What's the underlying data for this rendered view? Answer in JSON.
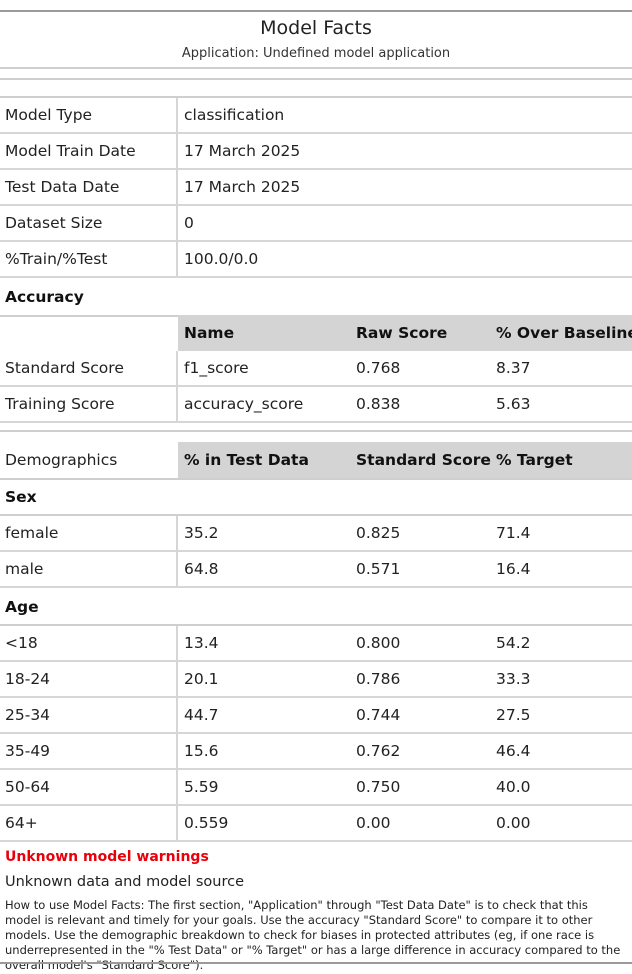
{
  "header": {
    "title": "Model Facts",
    "subtitle": "Application: Undefined model application"
  },
  "details": [
    {
      "label": "Model Type",
      "value": "classification"
    },
    {
      "label": "Model Train Date",
      "value": "17 March 2025"
    },
    {
      "label": "Test Data Date",
      "value": "17 March 2025"
    },
    {
      "label": "Dataset Size",
      "value": "0"
    },
    {
      "label": "%Train/%Test",
      "value": "100.0/0.0"
    }
  ],
  "accuracy": {
    "section_label": "Accuracy",
    "headers": [
      "Name",
      "Raw Score",
      "% Over Baseline"
    ],
    "rows": [
      {
        "label": "Standard Score",
        "name": "f1_score",
        "raw": "0.768",
        "over": "8.37"
      },
      {
        "label": "Training Score",
        "name": "accuracy_score",
        "raw": "0.838",
        "over": "5.63"
      }
    ]
  },
  "demographics": {
    "label": "Demographics",
    "headers": [
      "% in Test Data",
      "Standard Score",
      "% Target"
    ],
    "sex": {
      "section_label": "Sex",
      "rows": [
        {
          "group": "female",
          "pct": "35.2",
          "score": "0.825",
          "target": "71.4"
        },
        {
          "group": "male",
          "pct": "64.8",
          "score": "0.571",
          "target": "16.4"
        }
      ]
    },
    "age": {
      "section_label": "Age",
      "rows": [
        {
          "group": "<18",
          "pct": "13.4",
          "score": "0.800",
          "target": "54.2"
        },
        {
          "group": "18-24",
          "pct": "20.1",
          "score": "0.786",
          "target": "33.3"
        },
        {
          "group": "25-34",
          "pct": "44.7",
          "score": "0.744",
          "target": "27.5"
        },
        {
          "group": "35-49",
          "pct": "15.6",
          "score": "0.762",
          "target": "46.4"
        },
        {
          "group": "50-64",
          "pct": "5.59",
          "score": "0.750",
          "target": "40.0"
        },
        {
          "group": "64+",
          "pct": "0.559",
          "score": "0.00",
          "target": "0.00"
        }
      ]
    }
  },
  "footer": {
    "warning": "Unknown model warnings",
    "warning_color": "#e8000b",
    "source_note": "Unknown data and model source",
    "howto": "How to use Model Facts: The first section, \"Application\" through \"Test Data Date\" is to check that this model is relevant and timely for your goals. Use the accuracy \"Standard Score\" to compare it to other models. Use the demographic breakdown to check for biases in protected attributes (eg, if one race is underrepresented in the \"% Test Data\" or \"% Target\" or has a large difference in accuracy compared to the overall model's \"Standard Score\")."
  }
}
